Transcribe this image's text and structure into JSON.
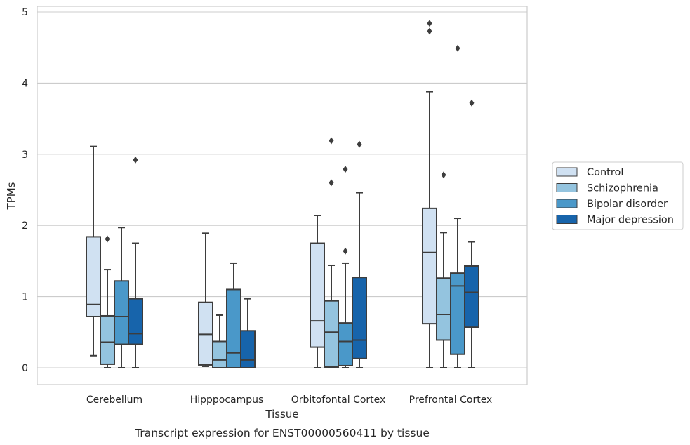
{
  "chart_data": {
    "type": "box",
    "caption": "Transcript expression for ENST00000560411 by tissue",
    "xlabel": "Tissue",
    "ylabel": "TPMs",
    "ylim": [
      -0.23,
      5.08
    ],
    "yticks": [
      0,
      1,
      2,
      3,
      4,
      5
    ],
    "grid": "horizontal",
    "legend_position": "right",
    "categories": [
      "Cerebellum",
      "Hipppocampus",
      "Orbitofontal Cortex",
      "Prefrontal Cortex"
    ],
    "series": [
      {
        "name": "Control",
        "color": "#d0e1f2",
        "boxes": [
          {
            "whisker_low": 0.17,
            "q1": 0.72,
            "median": 0.89,
            "q3": 1.84,
            "whisker_high": 3.11,
            "outliers": []
          },
          {
            "whisker_low": 0.02,
            "q1": 0.04,
            "median": 0.47,
            "q3": 0.92,
            "whisker_high": 1.89,
            "outliers": []
          },
          {
            "whisker_low": 0.0,
            "q1": 0.29,
            "median": 0.66,
            "q3": 1.75,
            "whisker_high": 2.14,
            "outliers": []
          },
          {
            "whisker_low": 0.0,
            "q1": 0.62,
            "median": 1.62,
            "q3": 2.24,
            "whisker_high": 3.88,
            "outliers": [
              4.73,
              4.84
            ]
          }
        ]
      },
      {
        "name": "Schizophrenia",
        "color": "#94c4df",
        "boxes": [
          {
            "whisker_low": 0.0,
            "q1": 0.05,
            "median": 0.36,
            "q3": 0.73,
            "whisker_high": 1.38,
            "outliers": [
              1.81
            ]
          },
          {
            "whisker_low": 0.0,
            "q1": 0.0,
            "median": 0.11,
            "q3": 0.37,
            "whisker_high": 0.74,
            "outliers": []
          },
          {
            "whisker_low": 0.0,
            "q1": 0.01,
            "median": 0.5,
            "q3": 0.94,
            "whisker_high": 1.44,
            "outliers": [
              2.6,
              3.19
            ]
          },
          {
            "whisker_low": 0.0,
            "q1": 0.39,
            "median": 0.75,
            "q3": 1.26,
            "whisker_high": 1.9,
            "outliers": [
              2.71
            ]
          }
        ]
      },
      {
        "name": "Bipolar disorder",
        "color": "#4a98c9",
        "boxes": [
          {
            "whisker_low": 0.0,
            "q1": 0.33,
            "median": 0.72,
            "q3": 1.22,
            "whisker_high": 1.97,
            "outliers": []
          },
          {
            "whisker_low": 0.0,
            "q1": 0.0,
            "median": 0.21,
            "q3": 1.1,
            "whisker_high": 1.47,
            "outliers": []
          },
          {
            "whisker_low": 0.0,
            "q1": 0.03,
            "median": 0.37,
            "q3": 0.63,
            "whisker_high": 1.47,
            "outliers": [
              1.64,
              2.79
            ]
          },
          {
            "whisker_low": 0.0,
            "q1": 0.19,
            "median": 1.15,
            "q3": 1.33,
            "whisker_high": 2.1,
            "outliers": [
              4.49
            ]
          }
        ]
      },
      {
        "name": "Major depression",
        "color": "#1764ab",
        "boxes": [
          {
            "whisker_low": 0.0,
            "q1": 0.33,
            "median": 0.48,
            "q3": 0.97,
            "whisker_high": 1.75,
            "outliers": [
              2.92
            ]
          },
          {
            "whisker_low": 0.0,
            "q1": 0.0,
            "median": 0.11,
            "q3": 0.52,
            "whisker_high": 0.97,
            "outliers": []
          },
          {
            "whisker_low": 0.0,
            "q1": 0.13,
            "median": 0.39,
            "q3": 1.27,
            "whisker_high": 2.46,
            "outliers": [
              3.14
            ]
          },
          {
            "whisker_low": 0.0,
            "q1": 0.57,
            "median": 1.06,
            "q3": 1.43,
            "whisker_high": 1.77,
            "outliers": [
              3.72
            ]
          }
        ]
      }
    ]
  }
}
